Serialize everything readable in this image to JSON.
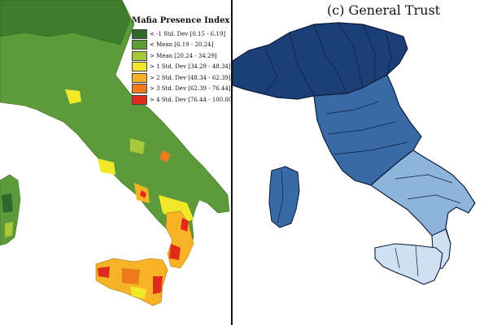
{
  "left_map": {
    "legend": {
      "title": "Mafia Presence Index",
      "items": [
        {
          "label": "< -1 Std. Dev [0.15 - 6.19]",
          "color": "#2e6b2a"
        },
        {
          "label": "< Mean [6.19 - 20.24]",
          "color": "#5d9a3a"
        },
        {
          "label": "> Mean [20.24 - 34.29]",
          "color": "#a8c83c"
        },
        {
          "label": "> 1 Std. Dev [34.29 - 48.34]",
          "color": "#f2e82a"
        },
        {
          "label": "> 2 Std. Dev [48.34 - 62.39]",
          "color": "#f5b325"
        },
        {
          "label": "> 3 Std. Dev [62.39 - 76.44]",
          "color": "#ef7a1e"
        },
        {
          "label": "> 4 Std. Dev [76.44 - 100.00]",
          "color": "#e02a1c"
        }
      ]
    }
  },
  "right_map": {
    "title": "(c)  General Trust",
    "colors": {
      "dark": "#1c3f78",
      "mid": "#3a6aa6",
      "light": "#8fb4dc",
      "pale": "#cfe0f2"
    }
  }
}
